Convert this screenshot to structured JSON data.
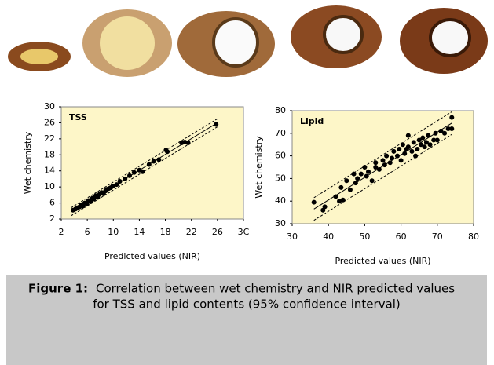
{
  "chart_data": [
    {
      "type": "scatter",
      "label": "TSS",
      "xlabel": "Predicted values (NIR)",
      "ylabel": "Wet chemistry",
      "xlim": [
        2,
        30
      ],
      "ylim": [
        2,
        30
      ],
      "xticks": [
        2,
        6,
        10,
        14,
        18,
        22,
        26,
        {
          "value": 30,
          "label": "3C"
        }
      ],
      "yticks": [
        2,
        6,
        10,
        14,
        18,
        22,
        26,
        30
      ],
      "color": "#000000",
      "background": "#fdf6c8",
      "x": [
        3.8,
        4.2,
        4.5,
        4.8,
        5.0,
        5.3,
        5.6,
        5.9,
        6.2,
        6.5,
        6.8,
        7.0,
        7.3,
        7.6,
        7.9,
        8.2,
        8.5,
        8.8,
        9.0,
        9.3,
        9.6,
        9.9,
        10.5,
        11.0,
        11.8,
        12.5,
        13.2,
        14.0,
        14.5,
        15.5,
        16.2,
        17.0,
        18.3,
        18.1,
        20.5,
        21.0,
        21.5,
        25.8
      ],
      "y": [
        4.2,
        4.5,
        4.8,
        5.0,
        5.5,
        5.2,
        6.0,
        5.8,
        6.6,
        6.3,
        7.2,
        7.0,
        7.8,
        7.4,
        8.2,
        8.6,
        8.3,
        9.0,
        9.4,
        9.6,
        9.8,
        10.2,
        10.6,
        11.4,
        12.0,
        12.8,
        13.6,
        14.2,
        13.8,
        15.6,
        16.4,
        16.8,
        18.8,
        19.2,
        21.0,
        21.2,
        21.0,
        25.6
      ],
      "fit": {
        "x": [
          3.5,
          26
        ],
        "y": [
          3.8,
          26
        ]
      },
      "bands": [
        {
          "x": [
            3.5,
            26
          ],
          "y": [
            4.8,
            27
          ]
        },
        {
          "x": [
            3.5,
            26
          ],
          "y": [
            2.8,
            25
          ]
        }
      ]
    },
    {
      "type": "scatter",
      "label": "Lipid",
      "xlabel": "Predicted values (NIR)",
      "ylabel": "Wet chemistry",
      "xlim": [
        30,
        80
      ],
      "ylim": [
        30,
        80
      ],
      "xticks": [
        30,
        40,
        50,
        60,
        70,
        80
      ],
      "yticks": [
        30,
        40,
        50,
        60,
        70,
        80
      ],
      "color": "#000000",
      "background": "#fdf6c8",
      "x": [
        36,
        38.5,
        39,
        42,
        43,
        43.5,
        44,
        45,
        46,
        47,
        47.5,
        48,
        49,
        50,
        50.5,
        51,
        52,
        53,
        53,
        54,
        55,
        55.5,
        56,
        57,
        57.5,
        58,
        59,
        59.5,
        60,
        60.5,
        61,
        61.5,
        62,
        62,
        63,
        63.5,
        64,
        64.5,
        65,
        65.5,
        66,
        66.5,
        67,
        67.5,
        68,
        69,
        69.5,
        70,
        71,
        72,
        73,
        74,
        74
      ],
      "y": [
        39.5,
        36,
        37.5,
        42,
        40,
        46,
        40.5,
        49,
        45,
        52,
        48,
        50,
        52,
        55,
        51,
        53,
        49,
        55,
        57,
        54,
        58,
        56,
        60,
        57,
        59,
        62,
        60,
        63,
        58,
        65,
        61,
        63,
        64,
        69,
        62,
        66,
        60,
        63,
        67,
        65,
        68,
        64,
        66,
        69,
        65,
        67,
        70,
        67,
        71,
        70,
        72,
        77,
        72
      ],
      "fit": {
        "x": [
          36,
          74
        ],
        "y": [
          36.5,
          74.5
        ]
      },
      "bands": [
        {
          "x": [
            36,
            74
          ],
          "y": [
            41.5,
            79.5
          ]
        },
        {
          "x": [
            36,
            74
          ],
          "y": [
            31.5,
            69.5
          ]
        }
      ]
    }
  ],
  "caption": {
    "label": "Figure 1:",
    "line1": "Correlation between wet chemistry and NIR predicted values",
    "line2": "for TSS and lipid contents (95% confidence interval)"
  }
}
